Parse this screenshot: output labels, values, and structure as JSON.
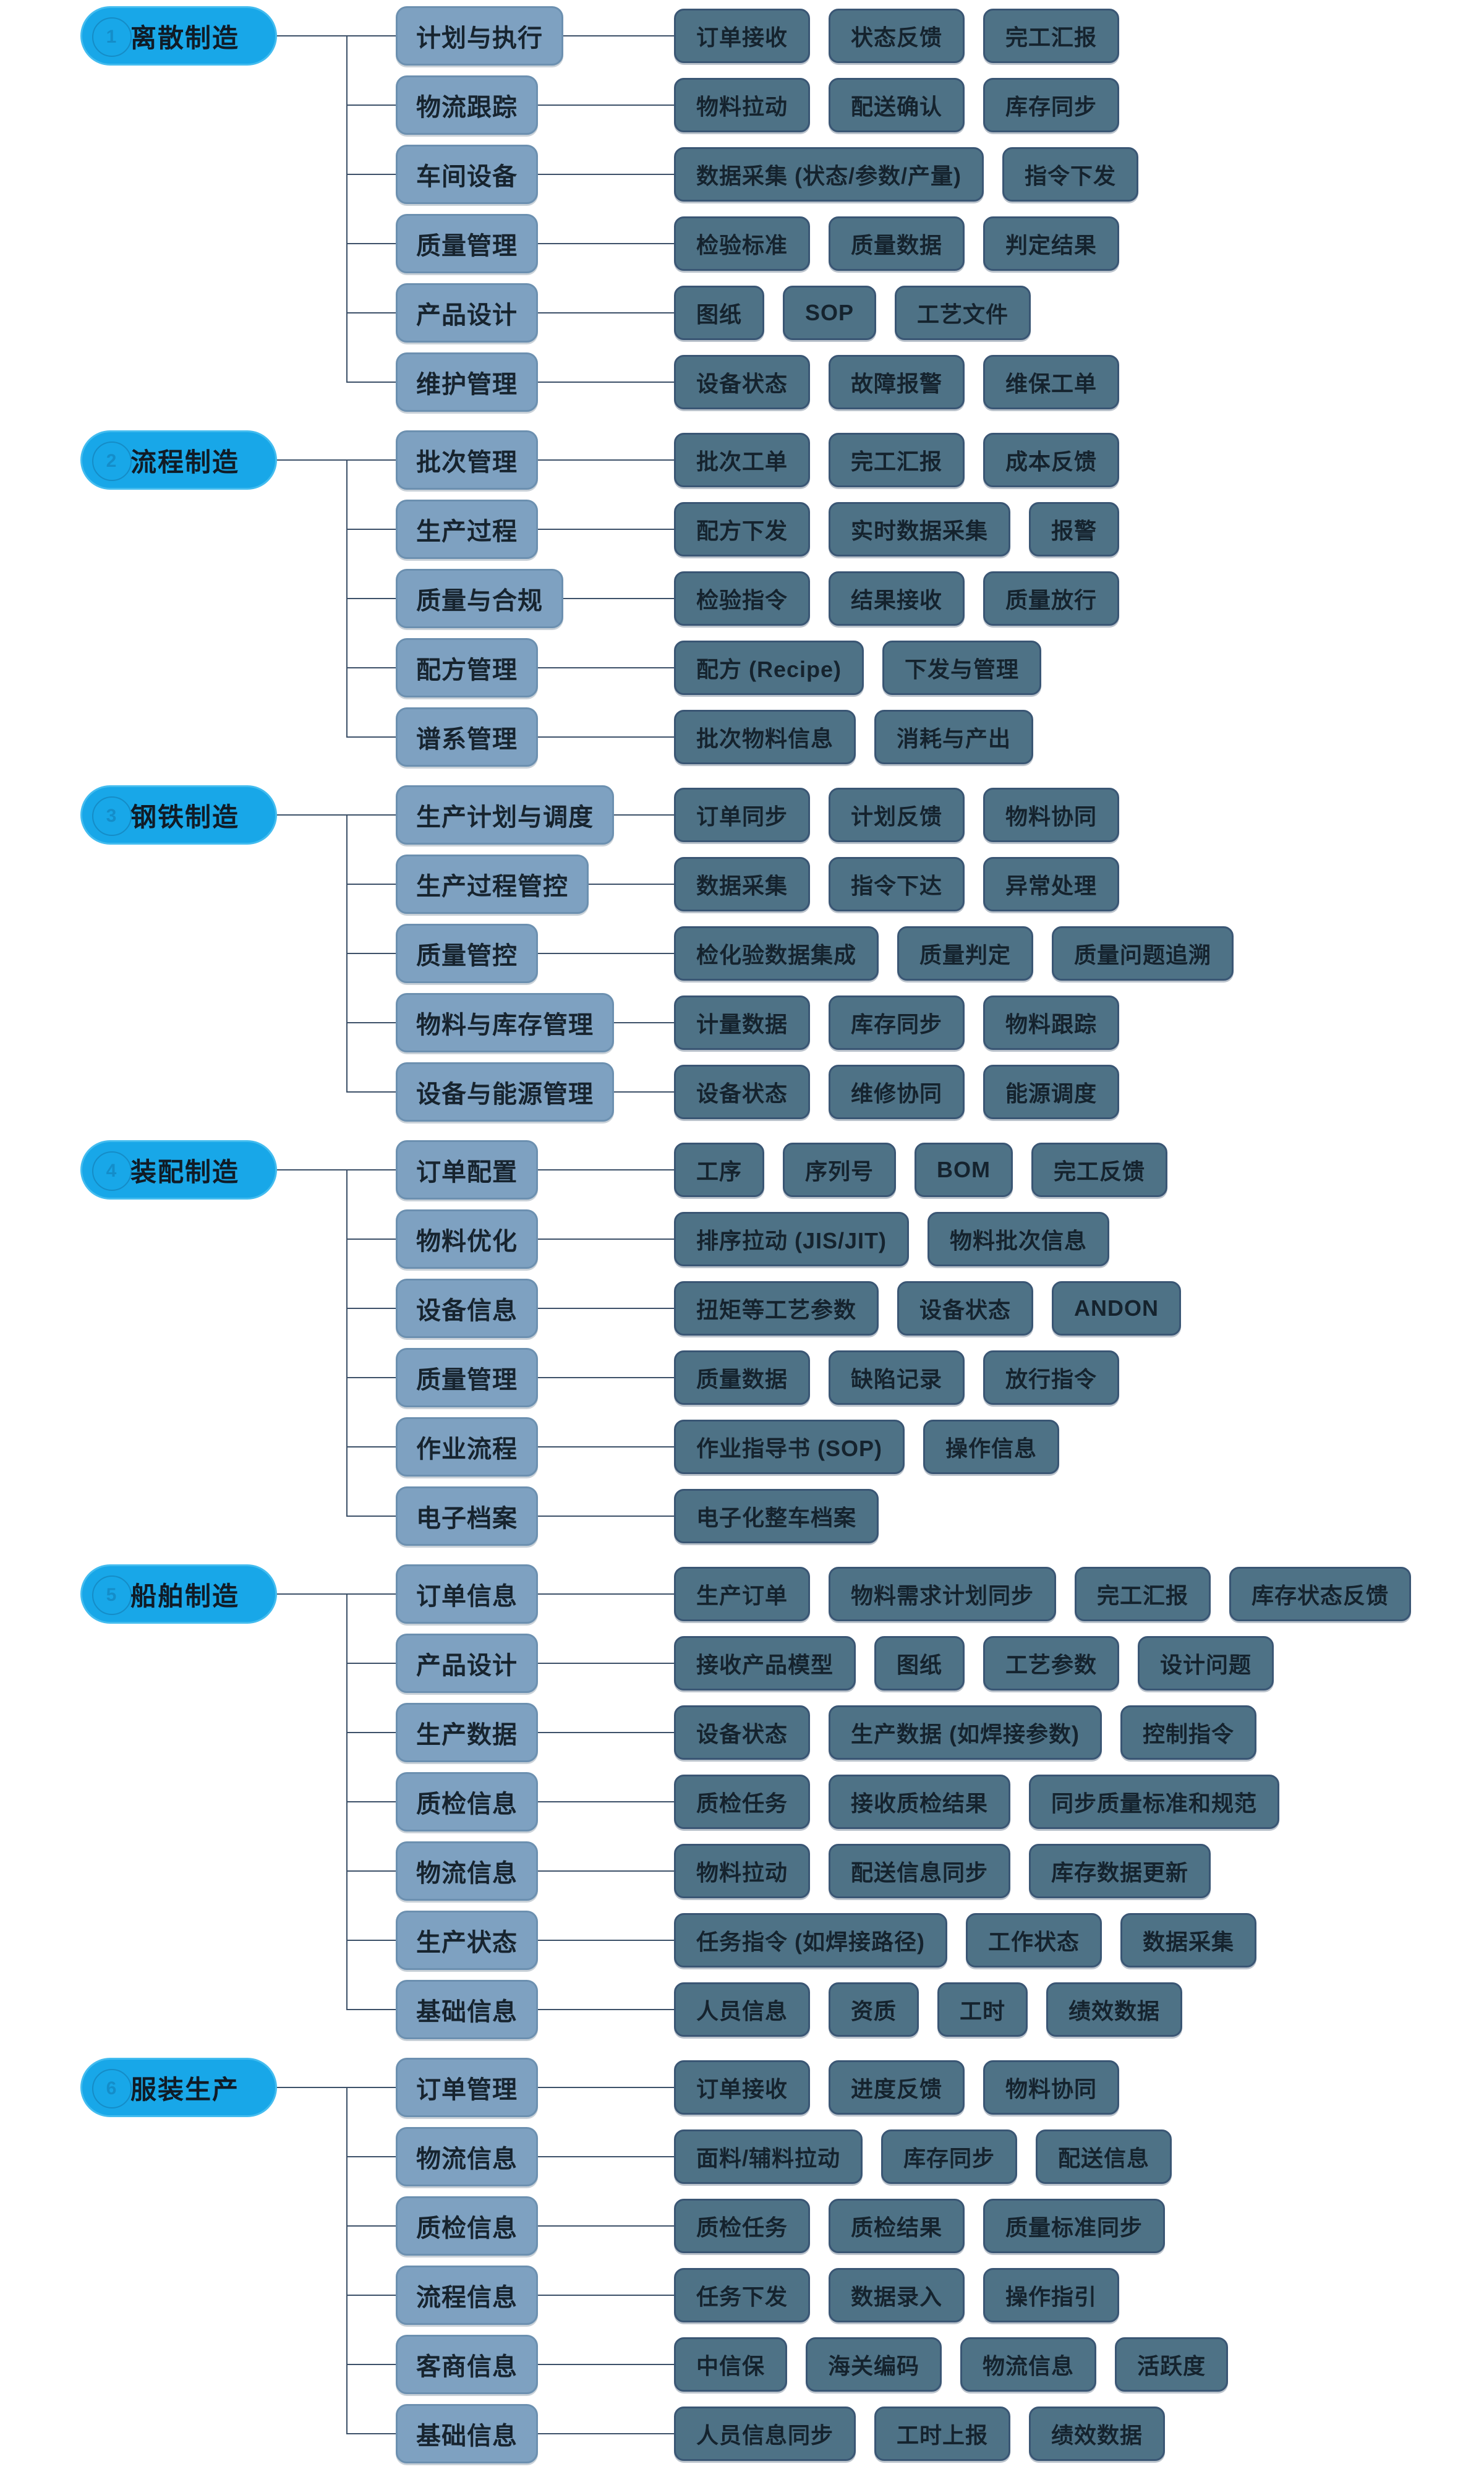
{
  "page": {
    "background": "#ffffff"
  },
  "colors": {
    "root_fill": "#18A7E8",
    "root_border": "#43BCEF",
    "branch_fill": "#7EA1C1",
    "branch_border": "#6C90B0",
    "leaf_fill": "#4E7286",
    "leaf_border": "#3A5674",
    "connector": "#3C5068",
    "text": "#15232E"
  },
  "tree": {
    "sections": [
      {
        "label": "离散制造",
        "badge": "1",
        "branches": [
          {
            "label": "计划与执行",
            "leaves": [
              "订单接收",
              "状态反馈",
              "完工汇报"
            ]
          },
          {
            "label": "物流跟踪",
            "leaves": [
              "物料拉动",
              "配送确认",
              "库存同步"
            ]
          },
          {
            "label": "车间设备",
            "leaves": [
              "数据采集 (状态/参数/产量)",
              "指令下发"
            ]
          },
          {
            "label": "质量管理",
            "leaves": [
              "检验标准",
              "质量数据",
              "判定结果"
            ]
          },
          {
            "label": "产品设计",
            "leaves": [
              "图纸",
              "SOP",
              "工艺文件"
            ]
          },
          {
            "label": "维护管理",
            "leaves": [
              "设备状态",
              "故障报警",
              "维保工单"
            ]
          }
        ]
      },
      {
        "label": "流程制造",
        "badge": "2",
        "branches": [
          {
            "label": "批次管理",
            "leaves": [
              "批次工单",
              "完工汇报",
              "成本反馈"
            ]
          },
          {
            "label": "生产过程",
            "leaves": [
              "配方下发",
              "实时数据采集",
              "报警"
            ]
          },
          {
            "label": "质量与合规",
            "leaves": [
              "检验指令",
              "结果接收",
              "质量放行"
            ]
          },
          {
            "label": "配方管理",
            "leaves": [
              "配方 (Recipe)",
              "下发与管理"
            ]
          },
          {
            "label": "谱系管理",
            "leaves": [
              "批次物料信息",
              "消耗与产出"
            ]
          }
        ]
      },
      {
        "label": "钢铁制造",
        "badge": "3",
        "branches": [
          {
            "label": "生产计划与调度",
            "leaves": [
              "订单同步",
              "计划反馈",
              "物料协同"
            ]
          },
          {
            "label": "生产过程管控",
            "leaves": [
              "数据采集",
              "指令下达",
              "异常处理"
            ]
          },
          {
            "label": "质量管控",
            "leaves": [
              "检化验数据集成",
              "质量判定",
              "质量问题追溯"
            ]
          },
          {
            "label": "物料与库存管理",
            "leaves": [
              "计量数据",
              "库存同步",
              "物料跟踪"
            ]
          },
          {
            "label": "设备与能源管理",
            "leaves": [
              "设备状态",
              "维修协同",
              "能源调度"
            ]
          }
        ]
      },
      {
        "label": "装配制造",
        "badge": "4",
        "branches": [
          {
            "label": "订单配置",
            "leaves": [
              "工序",
              "序列号",
              "BOM",
              "完工反馈"
            ]
          },
          {
            "label": "物料优化",
            "leaves": [
              "排序拉动 (JIS/JIT)",
              "物料批次信息"
            ]
          },
          {
            "label": "设备信息",
            "leaves": [
              "扭矩等工艺参数",
              "设备状态",
              "ANDON"
            ]
          },
          {
            "label": "质量管理",
            "leaves": [
              "质量数据",
              "缺陷记录",
              "放行指令"
            ]
          },
          {
            "label": "作业流程",
            "leaves": [
              "作业指导书 (SOP)",
              "操作信息"
            ]
          },
          {
            "label": "电子档案",
            "leaves": [
              "电子化整车档案"
            ]
          }
        ]
      },
      {
        "label": "船舶制造",
        "badge": "5",
        "branches": [
          {
            "label": "订单信息",
            "leaves": [
              "生产订单",
              "物料需求计划同步",
              "完工汇报",
              "库存状态反馈"
            ]
          },
          {
            "label": "产品设计",
            "leaves": [
              "接收产品模型",
              "图纸",
              "工艺参数",
              "设计问题"
            ]
          },
          {
            "label": "生产数据",
            "leaves": [
              "设备状态",
              "生产数据 (如焊接参数)",
              "控制指令"
            ]
          },
          {
            "label": "质检信息",
            "leaves": [
              "质检任务",
              "接收质检结果",
              "同步质量标准和规范"
            ]
          },
          {
            "label": "物流信息",
            "leaves": [
              "物料拉动",
              "配送信息同步",
              "库存数据更新"
            ]
          },
          {
            "label": "生产状态",
            "leaves": [
              "任务指令 (如焊接路径)",
              "工作状态",
              "数据采集"
            ]
          },
          {
            "label": "基础信息",
            "leaves": [
              "人员信息",
              "资质",
              "工时",
              "绩效数据"
            ]
          }
        ]
      },
      {
        "label": "服装生产",
        "badge": "6",
        "branches": [
          {
            "label": "订单管理",
            "leaves": [
              "订单接收",
              "进度反馈",
              "物料协同"
            ]
          },
          {
            "label": "物流信息",
            "leaves": [
              "面料/辅料拉动",
              "库存同步",
              "配送信息"
            ]
          },
          {
            "label": "质检信息",
            "leaves": [
              "质检任务",
              "质检结果",
              "质量标准同步"
            ]
          },
          {
            "label": "流程信息",
            "leaves": [
              "任务下发",
              "数据录入",
              "操作指引"
            ]
          },
          {
            "label": "客商信息",
            "leaves": [
              "中信保",
              "海关编码",
              "物流信息",
              "活跃度"
            ]
          },
          {
            "label": "基础信息",
            "leaves": [
              "人员信息同步",
              "工时上报",
              "绩效数据"
            ]
          }
        ]
      }
    ]
  }
}
